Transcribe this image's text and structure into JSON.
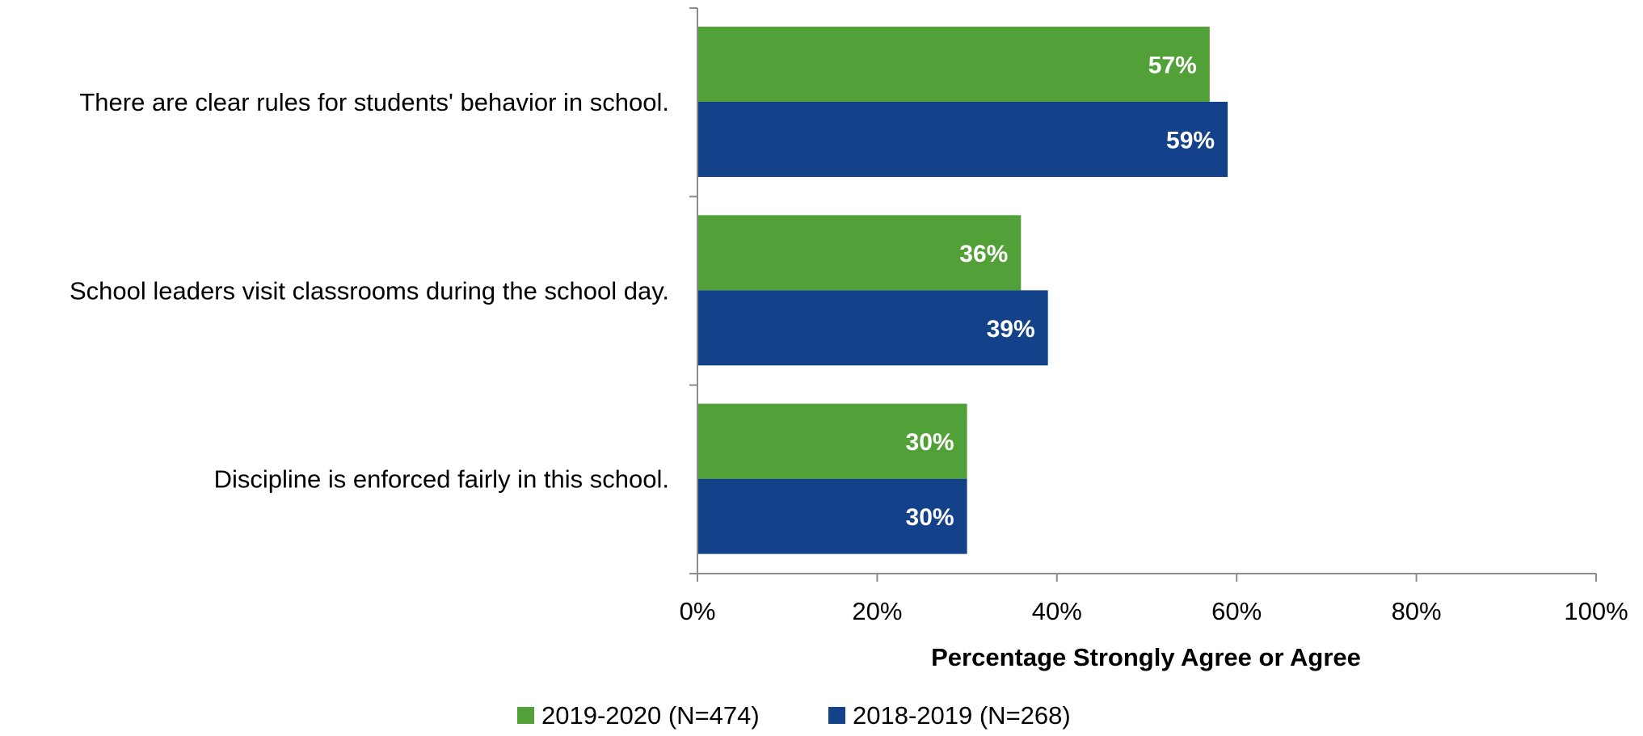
{
  "chart_data": {
    "type": "bar",
    "orientation": "horizontal",
    "categories": [
      "There are clear rules for students' behavior in school.",
      "School leaders visit classrooms during the school day.",
      "Discipline is enforced fairly in this school."
    ],
    "series": [
      {
        "name": "2019-2020 (N=474)",
        "color": "#52a038",
        "values": [
          57,
          36,
          30
        ]
      },
      {
        "name": "2018-2019 (N=268)",
        "color": "#13428a",
        "values": [
          59,
          39,
          30
        ]
      }
    ],
    "xlabel": "Percentage Strongly Agree or Agree",
    "ylabel": "",
    "xlim": [
      0,
      100
    ],
    "xticks": [
      0,
      20,
      40,
      60,
      80,
      100
    ],
    "value_suffix": "%",
    "grid": false,
    "legend_position": "bottom"
  }
}
